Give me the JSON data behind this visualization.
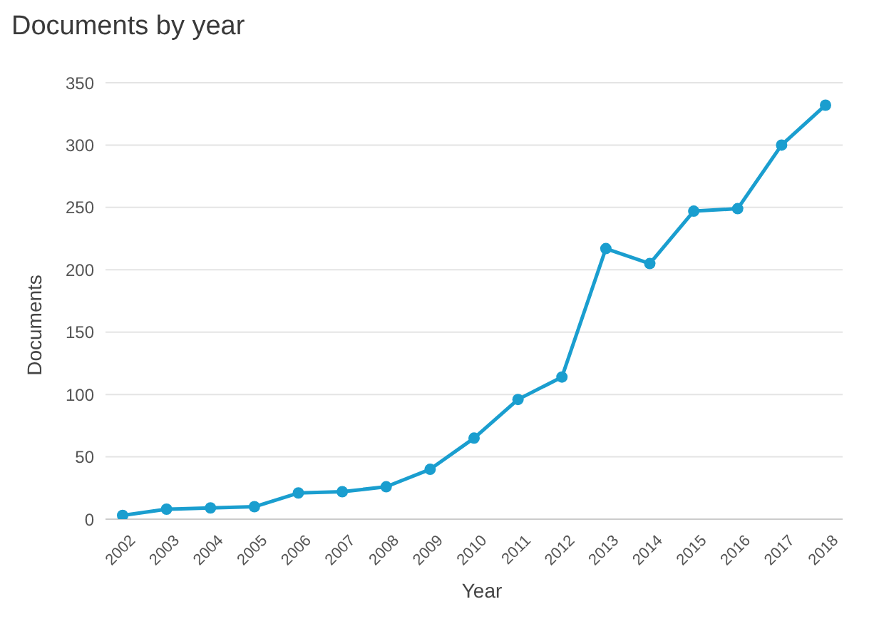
{
  "chart_data": {
    "type": "line",
    "title": "Documents by year",
    "xlabel": "Year",
    "ylabel": "Documents",
    "categories": [
      "2002",
      "2003",
      "2004",
      "2005",
      "2006",
      "2007",
      "2008",
      "2009",
      "2010",
      "2011",
      "2012",
      "2013",
      "2014",
      "2015",
      "2016",
      "2017",
      "2018"
    ],
    "series": [
      {
        "color": "#1a9ecf",
        "values": [
          3,
          8,
          9,
          10,
          21,
          22,
          26,
          40,
          65,
          96,
          114,
          217,
          205,
          247,
          249,
          300,
          332
        ]
      }
    ],
    "ylim": [
      0,
      350
    ],
    "yticks": [
      0,
      50,
      100,
      150,
      200,
      250,
      300,
      350
    ],
    "grid": "y",
    "marker": "circle",
    "line_style": "solid"
  }
}
